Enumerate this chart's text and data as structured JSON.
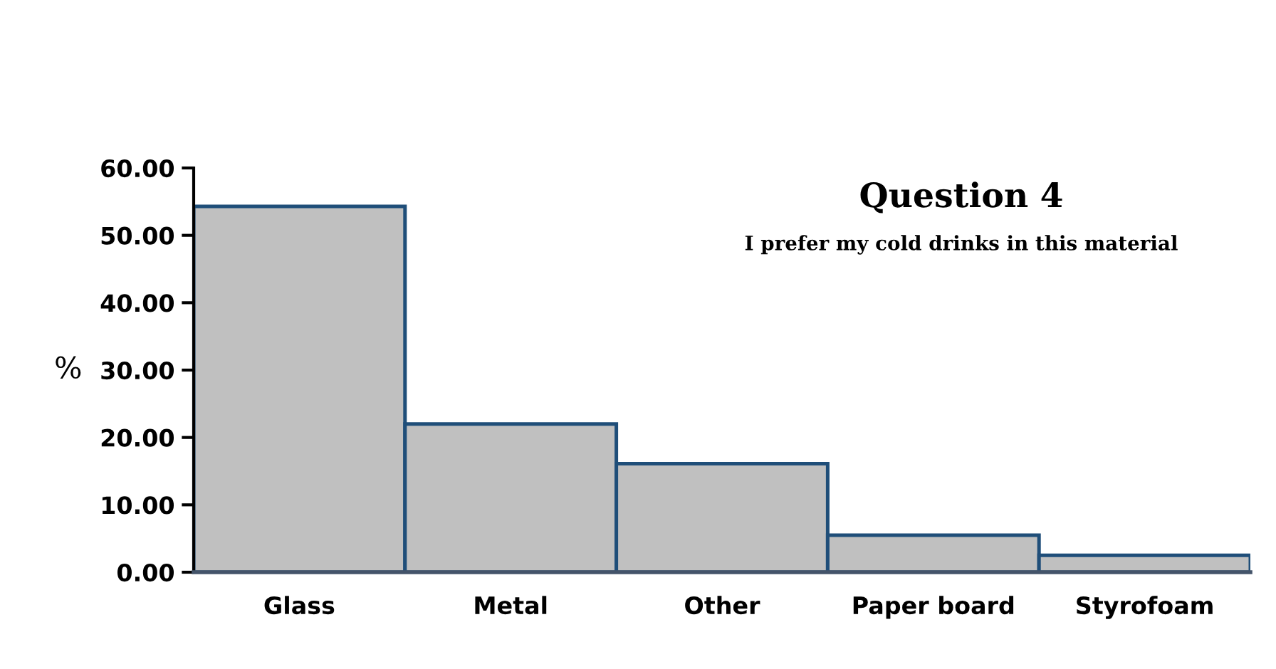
{
  "chart_data": {
    "type": "bar",
    "title": "Question 4",
    "subtitle": "I prefer my cold drinks in this material",
    "ylabel": "%",
    "categories": [
      "Glass",
      "Metal",
      "Other",
      "Paper board",
      "Styrofoam"
    ],
    "values": [
      54.3,
      22.0,
      16.1,
      5.5,
      2.5
    ],
    "color": "#c0c0c0",
    "ylim": [
      0,
      60
    ],
    "yticks": [
      {
        "value": 0,
        "label": "0.00"
      },
      {
        "value": 10,
        "label": "10.00"
      },
      {
        "value": 20,
        "label": "20.00"
      },
      {
        "value": 30,
        "label": "30.00"
      },
      {
        "value": 40,
        "label": "40.00"
      },
      {
        "value": 50,
        "label": "50.00"
      },
      {
        "value": 60,
        "label": "60.00"
      }
    ],
    "grid": false
  }
}
